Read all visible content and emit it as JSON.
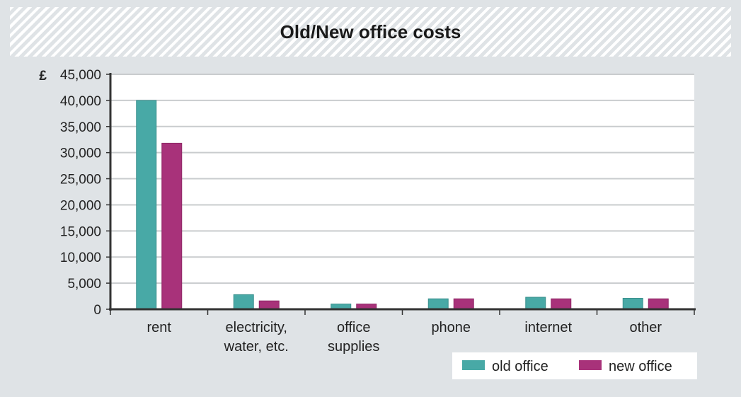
{
  "chart_data": {
    "type": "bar",
    "title": "Old/New office costs",
    "ylabel": "£",
    "xlabel": "",
    "ylim": [
      0,
      45000
    ],
    "yticks": [
      0,
      5000,
      10000,
      15000,
      20000,
      25000,
      30000,
      35000,
      40000,
      45000
    ],
    "ytick_labels": [
      "0",
      "5,000",
      "10,000",
      "15,000",
      "20,000",
      "25,000",
      "30,000",
      "35,000",
      "40,000",
      "45,000"
    ],
    "categories": [
      [
        "rent"
      ],
      [
        "electricity,",
        "water, etc."
      ],
      [
        "office",
        "supplies"
      ],
      [
        "phone"
      ],
      [
        "internet"
      ],
      [
        "other"
      ]
    ],
    "series": [
      {
        "name": "old office",
        "color": "#48a9a6",
        "values": [
          40000,
          2800,
          1000,
          2000,
          2300,
          2100
        ]
      },
      {
        "name": "new office",
        "color": "#a8327a",
        "values": [
          31800,
          1600,
          1000,
          2000,
          2000,
          2000
        ]
      }
    ],
    "legend": "bottom-right",
    "grid": true
  }
}
